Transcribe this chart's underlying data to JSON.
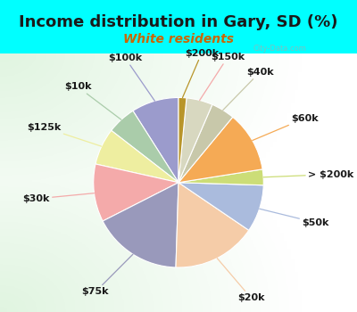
{
  "title": "Income distribution in Gary, SD (%)",
  "subtitle": "White residents",
  "bg_color": "#00FFFF",
  "labels": [
    "$100k",
    "$10k",
    "$125k",
    "$30k",
    "$75k",
    "$20k",
    "$50k",
    "> $200k",
    "$60k",
    "$40k",
    "$150k",
    "$200k"
  ],
  "sizes": [
    9.0,
    5.5,
    7.0,
    11.0,
    17.0,
    16.0,
    9.0,
    3.0,
    11.5,
    4.5,
    5.0,
    1.5
  ],
  "colors": [
    "#9b9bcc",
    "#aaccaa",
    "#eeeea0",
    "#f4aaaa",
    "#9999bb",
    "#f5cca8",
    "#aabbdd",
    "#ccdd77",
    "#f5aa55",
    "#c8c8aa",
    "#d8d8c0",
    "#b8952a"
  ],
  "line_colors": [
    "#9b9bcc",
    "#aaccaa",
    "#eeeea0",
    "#f4aaaa",
    "#9999bb",
    "#f5cca8",
    "#aabbdd",
    "#ccdd77",
    "#f5aa55",
    "#c8c8aa",
    "#f4aaaa",
    "#b8952a"
  ],
  "startangle": 90,
  "title_fontsize": 13,
  "subtitle_fontsize": 10,
  "label_fontsize": 8,
  "watermark": "City-Data.com"
}
